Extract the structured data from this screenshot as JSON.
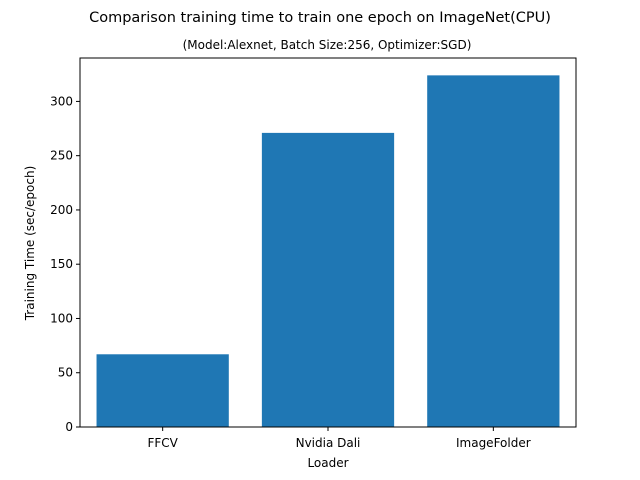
{
  "chart_data": {
    "type": "bar",
    "title": "Comparison training time to train one epoch on ImageNet(CPU)",
    "subtitle": "(Model:Alexnet, Batch Size:256, Optimizer:SGD)",
    "xlabel": "Loader",
    "ylabel": "Training Time (sec/epoch)",
    "categories": [
      "FFCV",
      "Nvidia Dali",
      "ImageFolder"
    ],
    "values": [
      67,
      271,
      324
    ],
    "ylim": [
      0,
      340
    ],
    "yticks": [
      0,
      50,
      100,
      150,
      200,
      250,
      300
    ],
    "bar_color": "#1f77b4",
    "grid": false,
    "legend": "none"
  }
}
